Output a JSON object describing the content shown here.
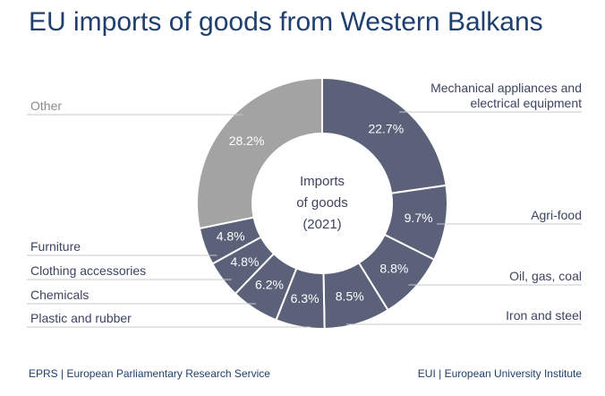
{
  "chart_data": {
    "type": "donut",
    "title": "EU imports of goods from Western Balkans",
    "center_label": [
      "Imports",
      "of goods",
      "(2021)"
    ],
    "categories": [
      "Mechanical appliances and electrical equipment",
      "Agri-food",
      "Oil, gas, coal",
      "Iron and steel",
      "Plastic and rubber",
      "Chemicals",
      "Clothing accessories",
      "Furniture",
      "Other"
    ],
    "values": [
      22.7,
      9.7,
      8.8,
      8.5,
      6.3,
      6.2,
      4.8,
      4.8,
      28.2
    ],
    "value_labels": [
      "22.7%",
      "9.7%",
      "8.8%",
      "8.5%",
      "6.3%",
      "6.2%",
      "4.8%",
      "4.8%",
      "28.2%"
    ],
    "colors": [
      "#5b6178",
      "#5b6178",
      "#5b6178",
      "#5b6178",
      "#5b6178",
      "#5b6178",
      "#5b6178",
      "#5b6178",
      "#a3a3a3"
    ]
  },
  "footer": {
    "left": "EPRS | European Parliamentary Research Service",
    "right": "EUI | European University Institute"
  }
}
